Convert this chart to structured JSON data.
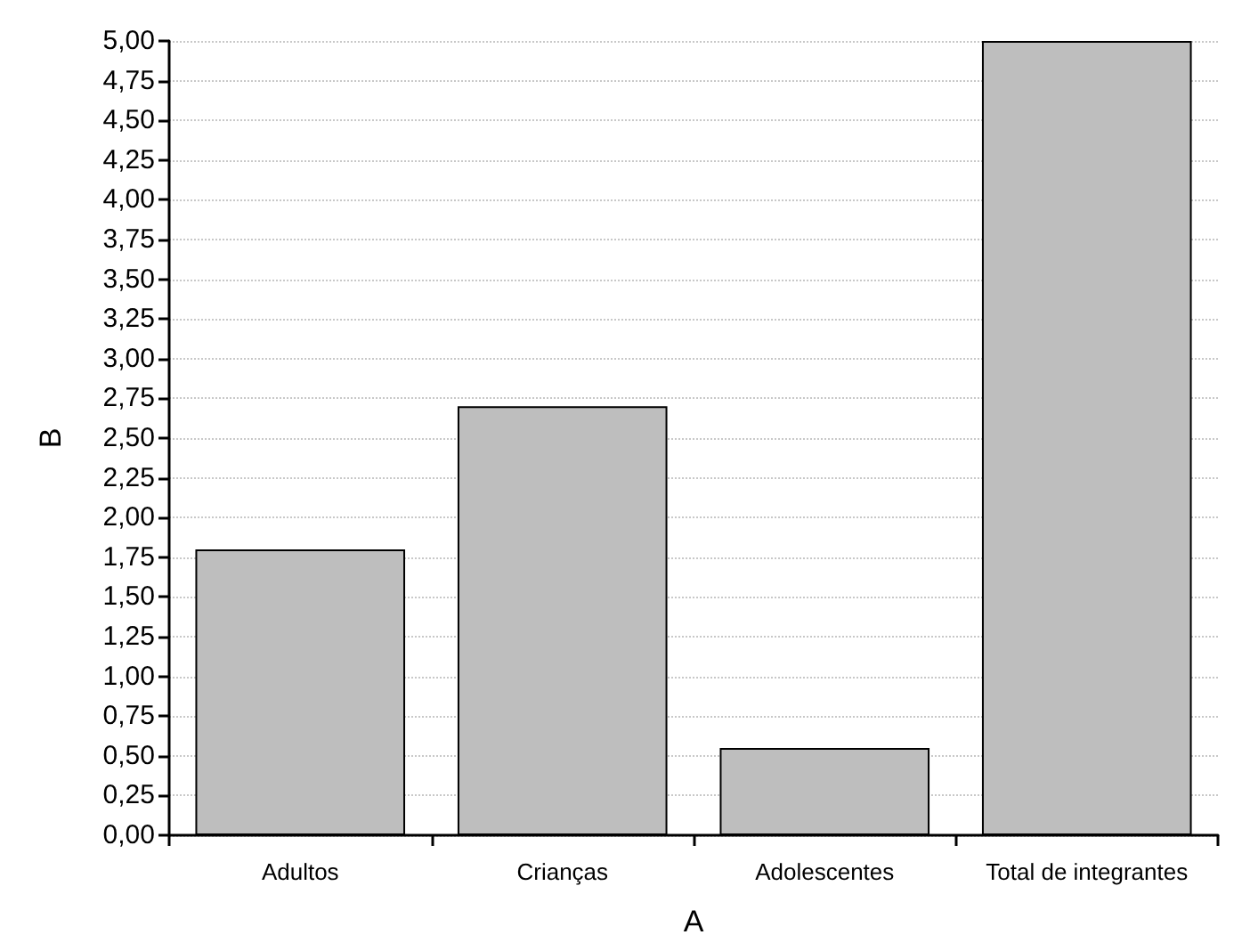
{
  "chart_data": {
    "type": "bar",
    "xlabel": "A",
    "ylabel": "B",
    "categories": [
      "Adultos",
      "Crianças",
      "Adolescentes",
      "Total de integrantes"
    ],
    "values": [
      1.8,
      2.7,
      0.55,
      5.0
    ],
    "color": "#bebebe",
    "ylim": [
      0,
      5
    ],
    "yticks": [
      {
        "value": 0,
        "label": "0,00"
      },
      {
        "value": 0.25,
        "label": "0,25"
      },
      {
        "value": 0.5,
        "label": "0,50"
      },
      {
        "value": 0.75,
        "label": "0,75"
      },
      {
        "value": 1,
        "label": "1,00"
      },
      {
        "value": 1.25,
        "label": "1,25"
      },
      {
        "value": 1.5,
        "label": "1,50"
      },
      {
        "value": 1.75,
        "label": "1,75"
      },
      {
        "value": 2,
        "label": "2,00"
      },
      {
        "value": 2.25,
        "label": "2,25"
      },
      {
        "value": 2.5,
        "label": "2,50"
      },
      {
        "value": 2.75,
        "label": "2,75"
      },
      {
        "value": 3,
        "label": "3,00"
      },
      {
        "value": 3.25,
        "label": "3,25"
      },
      {
        "value": 3.5,
        "label": "3,50"
      },
      {
        "value": 3.75,
        "label": "3,75"
      },
      {
        "value": 4,
        "label": "4,00"
      },
      {
        "value": 4.25,
        "label": "4,25"
      },
      {
        "value": 4.5,
        "label": "4,50"
      },
      {
        "value": 4.75,
        "label": "4,75"
      },
      {
        "value": 5,
        "label": "5,00"
      }
    ],
    "grid": "y"
  }
}
